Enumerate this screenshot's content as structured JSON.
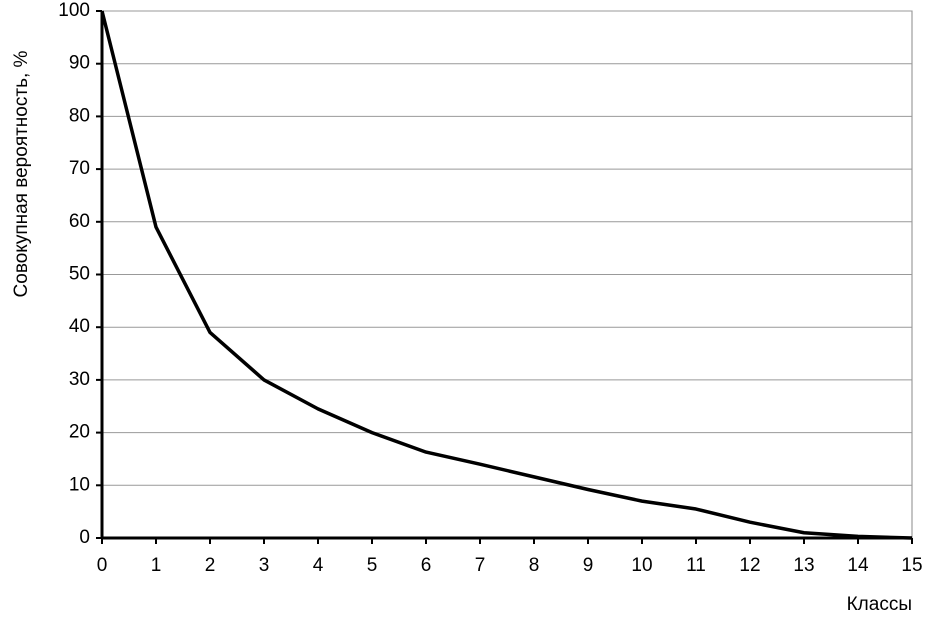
{
  "chart_data": {
    "type": "line",
    "y_label": "Совокупная вероятность, %",
    "x_label": "Классы",
    "x": [
      0,
      1,
      2,
      3,
      4,
      5,
      6,
      7,
      8,
      9,
      10,
      11,
      12,
      13,
      14,
      15
    ],
    "series": [
      {
        "color": "#000000",
        "values": [
          100,
          59,
          39,
          30,
          24.5,
          20,
          16.3,
          14,
          11.6,
          9.2,
          7,
          5.5,
          3,
          1,
          0.3,
          0
        ]
      }
    ],
    "xlim": [
      0,
      15
    ],
    "xticks": [
      0,
      1,
      2,
      3,
      4,
      5,
      6,
      7,
      8,
      9,
      10,
      11,
      12,
      13,
      14,
      15
    ],
    "ylim": [
      0,
      100
    ],
    "yticks": [
      0,
      10,
      20,
      30,
      40,
      50,
      60,
      70,
      80,
      90,
      100
    ],
    "grid": true
  }
}
